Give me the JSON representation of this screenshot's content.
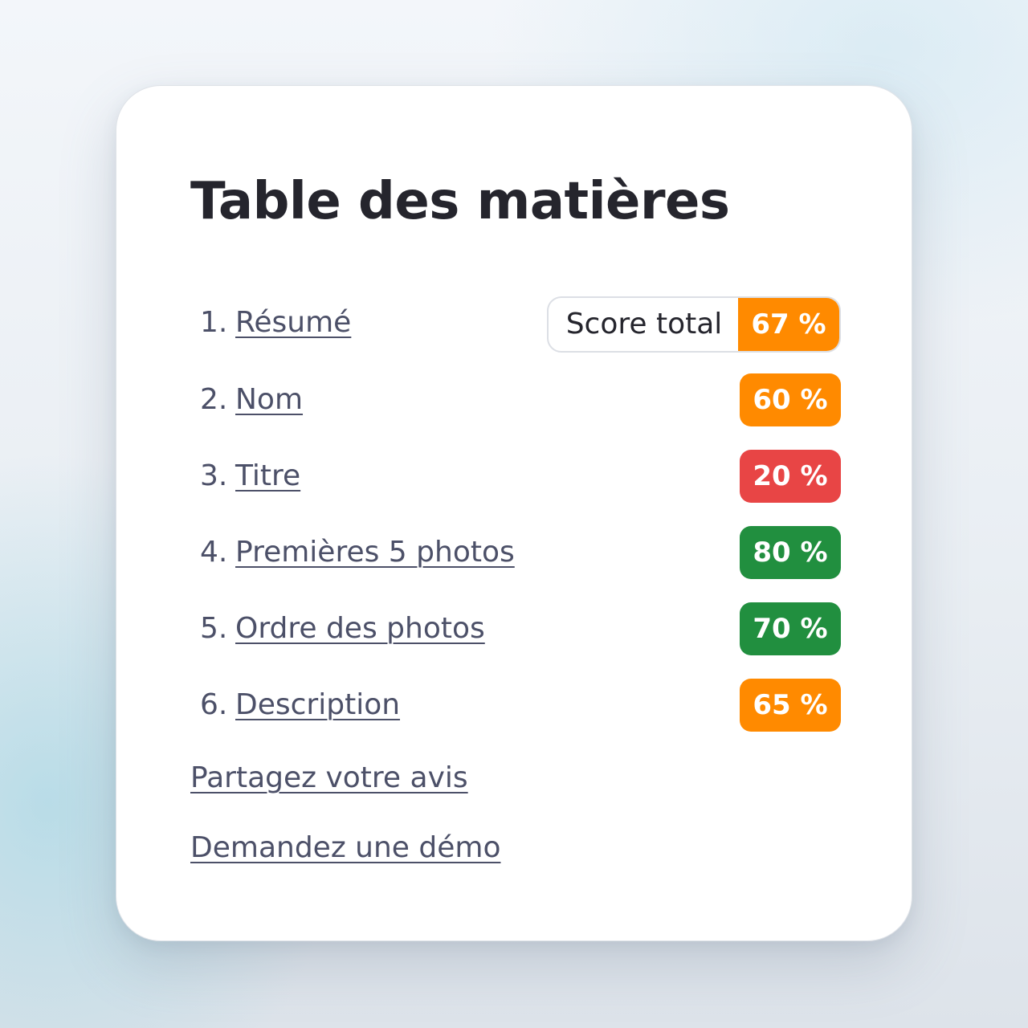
{
  "colors": {
    "orange": "#ff8a00",
    "red": "#e84545",
    "green": "#218f3f",
    "link_text": "#4c5068",
    "heading_text": "#25252d"
  },
  "card": {
    "title": "Table des matières",
    "total": {
      "label": "Score total",
      "value": "67 %",
      "color": "orange"
    },
    "items": [
      {
        "number": "1.",
        "label": "Résumé"
      },
      {
        "number": "2.",
        "label": "Nom",
        "score": "60 %",
        "color": "orange"
      },
      {
        "number": "3.",
        "label": "Titre",
        "score": "20 %",
        "color": "red"
      },
      {
        "number": "4.",
        "label": "Premières 5 photos",
        "score": "80 %",
        "color": "green"
      },
      {
        "number": "5.",
        "label": "Ordre des photos",
        "score": "70 %",
        "color": "green"
      },
      {
        "number": "6.",
        "label": "Description",
        "score": "65 %",
        "color": "orange"
      }
    ],
    "footer_links": [
      {
        "label": "Partagez votre avis"
      },
      {
        "label": "Demandez une démo"
      }
    ]
  }
}
